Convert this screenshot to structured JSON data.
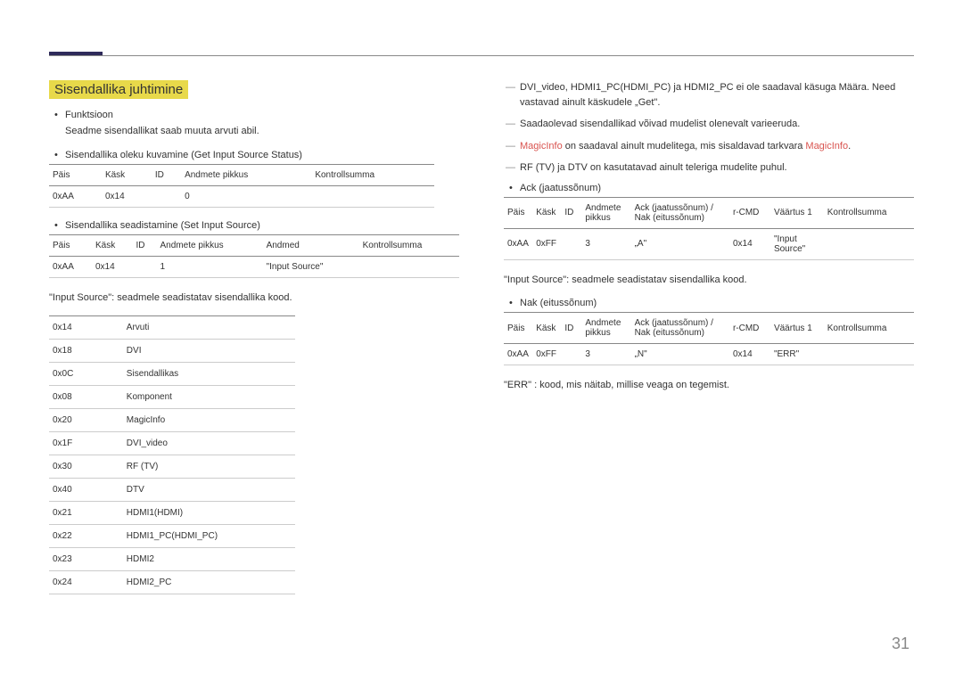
{
  "page_number": "31",
  "section_title": "Sisendallika juhtimine",
  "left": {
    "funktsioon_label": "Funktsioon",
    "funktsioon_desc": "Seadme sisendallikat saab muuta arvuti abil.",
    "get_status": "Sisendallika oleku kuvamine (Get Input Source Status)",
    "set_source": "Sisendallika seadistamine (Set Input Source)",
    "table1": {
      "h": [
        "Päis",
        "Käsk",
        "ID",
        "Andmete pikkus",
        "Kontrollsumma"
      ],
      "r": [
        "0xAA",
        "0x14",
        "",
        "0",
        ""
      ]
    },
    "table2": {
      "h": [
        "Päis",
        "Käsk",
        "ID",
        "Andmete pikkus",
        "Andmed",
        "Kontrollsumma"
      ],
      "r": [
        "0xAA",
        "0x14",
        "",
        "1",
        "\"Input Source\"",
        ""
      ]
    },
    "input_source_note": "\"Input Source\": seadmele seadistatav sisendallika kood.",
    "codes": [
      [
        "0x14",
        "Arvuti"
      ],
      [
        "0x18",
        "DVI"
      ],
      [
        "0x0C",
        "Sisendallikas"
      ],
      [
        "0x08",
        "Komponent"
      ],
      [
        "0x20",
        "MagicInfo"
      ],
      [
        "0x1F",
        "DVI_video"
      ],
      [
        "0x30",
        "RF (TV)"
      ],
      [
        "0x40",
        "DTV"
      ],
      [
        "0x21",
        "HDMI1(HDMI)"
      ],
      [
        "0x22",
        "HDMI1_PC(HDMI_PC)"
      ],
      [
        "0x23",
        "HDMI2"
      ],
      [
        "0x24",
        "HDMI2_PC"
      ]
    ]
  },
  "right": {
    "note1": "DVI_video, HDMI1_PC(HDMI_PC) ja HDMI2_PC ei ole saadaval käsuga Määra. Need vastavad ainult käskudele „Get\".",
    "note2": "Saadaolevad sisendallikad võivad mudelist olenevalt varieeruda.",
    "note3_a": "MagicInfo",
    "note3_b": " on saadaval ainult mudelitega, mis sisaldavad tarkvara ",
    "note3_c": "MagicInfo",
    "note3_d": ".",
    "note4": "RF (TV) ja DTV on kasutatavad ainult teleriga mudelite puhul.",
    "ack_label": "Ack (jaatussõnum)",
    "nak_label": "Nak (eitussõnum)",
    "table3": {
      "h": [
        "Päis",
        "Käsk",
        "ID",
        "Andmete pikkus",
        "Ack (jaatussõnum) / Nak (eitussõnum)",
        "r-CMD",
        "Väärtus 1",
        "Kontrollsumma"
      ],
      "r": [
        "0xAA",
        "0xFF",
        "",
        "3",
        "„A\"",
        "0x14",
        "\"Input Source\"",
        ""
      ]
    },
    "input_source_note": "\"Input Source\": seadmele seadistatav sisendallika kood.",
    "table4": {
      "h": [
        "Päis",
        "Käsk",
        "ID",
        "Andmete pikkus",
        "Ack (jaatussõnum) / Nak (eitussõnum)",
        "r-CMD",
        "Väärtus 1",
        "Kontrollsumma"
      ],
      "r": [
        "0xAA",
        "0xFF",
        "",
        "3",
        "„N\"",
        "0x14",
        "\"ERR\"",
        ""
      ]
    },
    "err_note": "\"ERR\" : kood, mis näitab, millise veaga on tegemist."
  }
}
